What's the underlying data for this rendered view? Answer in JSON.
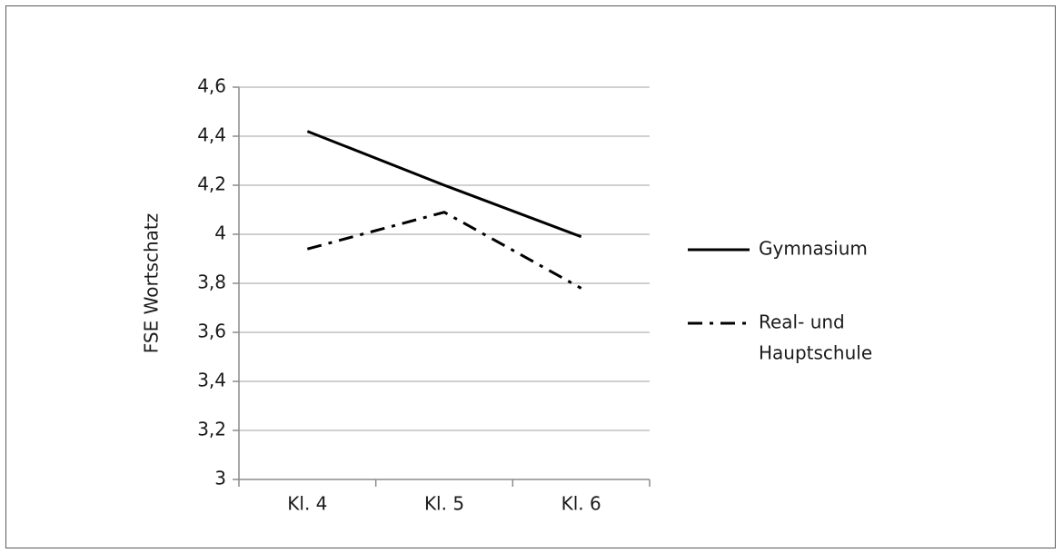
{
  "chart_data": {
    "type": "line",
    "title": "",
    "xlabel": "",
    "ylabel": "FSE Wortschatz",
    "categories": [
      "Kl. 4",
      "Kl. 5",
      "Kl. 6"
    ],
    "ylim": [
      3,
      4.6
    ],
    "yticks": [
      3,
      3.2,
      3.4,
      3.6,
      3.8,
      4,
      4.2,
      4.4,
      4.6
    ],
    "ytick_labels": [
      "3",
      "3,2",
      "3,4",
      "3,6",
      "3,8",
      "4",
      "4,2",
      "4,4",
      "4,6"
    ],
    "grid": true,
    "legend_position": "right",
    "series": [
      {
        "name": "Gymnasium",
        "values": [
          4.42,
          4.2,
          3.99
        ],
        "color": "#000000",
        "style": "solid"
      },
      {
        "name": "Real- und Hauptschule",
        "legend_lines": [
          "Real- und",
          "Hauptschule"
        ],
        "values": [
          3.94,
          4.09,
          3.78
        ],
        "color": "#000000",
        "style": "dash-dot"
      }
    ]
  }
}
